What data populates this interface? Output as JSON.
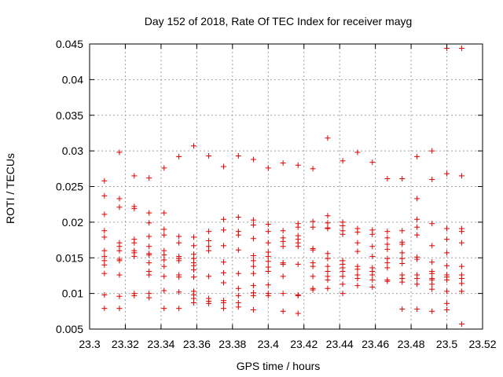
{
  "chart_data": {
    "type": "scatter",
    "title": "Day 152 of 2018, Rate Of TEC Index for receiver mayg",
    "xlabel": "GPS time / hours",
    "ylabel": "ROTI / TECUs",
    "xlim": [
      23.3,
      23.52
    ],
    "ylim": [
      0.005,
      0.045
    ],
    "x_ticks": [
      23.3,
      23.32,
      23.34,
      23.36,
      23.38,
      23.4,
      23.42,
      23.44,
      23.46,
      23.48,
      23.5,
      23.52
    ],
    "x_tick_labels": [
      "23.3",
      "23.32",
      "23.34",
      "23.36",
      "23.38",
      "23.4",
      "23.42",
      "23.44",
      "23.46",
      "23.48",
      "23.5",
      "23.52"
    ],
    "y_ticks": [
      0.005,
      0.01,
      0.015,
      0.02,
      0.025,
      0.03,
      0.035,
      0.04,
      0.045
    ],
    "y_tick_labels": [
      "0.005",
      "0.01",
      "0.015",
      "0.02",
      "0.025",
      "0.03",
      "0.035",
      "0.04",
      "0.045"
    ],
    "grid": true,
    "marker": "+",
    "color": "#e00000",
    "series": [
      {
        "name": "ROTI",
        "points": [
          [
            23.3083,
            0.0258
          ],
          [
            23.3083,
            0.0237
          ],
          [
            23.3083,
            0.0211
          ],
          [
            23.3083,
            0.0188
          ],
          [
            23.3083,
            0.0179
          ],
          [
            23.3083,
            0.016
          ],
          [
            23.3083,
            0.0152
          ],
          [
            23.3083,
            0.0146
          ],
          [
            23.3083,
            0.014
          ],
          [
            23.3083,
            0.0128
          ],
          [
            23.3083,
            0.0098
          ],
          [
            23.3083,
            0.0079
          ],
          [
            23.3167,
            0.0298
          ],
          [
            23.3167,
            0.0233
          ],
          [
            23.3167,
            0.0221
          ],
          [
            23.3167,
            0.0171
          ],
          [
            23.3167,
            0.0166
          ],
          [
            23.3167,
            0.016
          ],
          [
            23.3167,
            0.0148
          ],
          [
            23.3167,
            0.0146
          ],
          [
            23.3167,
            0.0126
          ],
          [
            23.3167,
            0.0096
          ],
          [
            23.3167,
            0.0079
          ],
          [
            23.325,
            0.0265
          ],
          [
            23.325,
            0.0222
          ],
          [
            23.325,
            0.0219
          ],
          [
            23.325,
            0.0176
          ],
          [
            23.325,
            0.0171
          ],
          [
            23.325,
            0.016
          ],
          [
            23.325,
            0.0157
          ],
          [
            23.325,
            0.0152
          ],
          [
            23.325,
            0.01
          ],
          [
            23.325,
            0.0097
          ],
          [
            23.3333,
            0.0262
          ],
          [
            23.3333,
            0.0213
          ],
          [
            23.3333,
            0.0199
          ],
          [
            23.3333,
            0.018
          ],
          [
            23.3333,
            0.0166
          ],
          [
            23.3333,
            0.0156
          ],
          [
            23.3333,
            0.0154
          ],
          [
            23.3333,
            0.0143
          ],
          [
            23.3333,
            0.0131
          ],
          [
            23.3333,
            0.0126
          ],
          [
            23.3333,
            0.01
          ],
          [
            23.3333,
            0.0094
          ],
          [
            23.3417,
            0.0276
          ],
          [
            23.3417,
            0.0213
          ],
          [
            23.3417,
            0.019
          ],
          [
            23.3417,
            0.0182
          ],
          [
            23.3417,
            0.016
          ],
          [
            23.3417,
            0.0154
          ],
          [
            23.3417,
            0.0147
          ],
          [
            23.3417,
            0.0138
          ],
          [
            23.3417,
            0.0124
          ],
          [
            23.3417,
            0.0104
          ],
          [
            23.3417,
            0.0079
          ],
          [
            23.35,
            0.0292
          ],
          [
            23.35,
            0.018
          ],
          [
            23.35,
            0.0171
          ],
          [
            23.35,
            0.0152
          ],
          [
            23.35,
            0.0149
          ],
          [
            23.35,
            0.0146
          ],
          [
            23.35,
            0.0126
          ],
          [
            23.35,
            0.0123
          ],
          [
            23.35,
            0.0102
          ],
          [
            23.35,
            0.0079
          ],
          [
            23.3583,
            0.0307
          ],
          [
            23.3583,
            0.0179
          ],
          [
            23.3583,
            0.0167
          ],
          [
            23.3583,
            0.0155
          ],
          [
            23.3583,
            0.0149
          ],
          [
            23.3583,
            0.0143
          ],
          [
            23.3583,
            0.0139
          ],
          [
            23.3583,
            0.0133
          ],
          [
            23.3583,
            0.0123
          ],
          [
            23.3583,
            0.0103
          ],
          [
            23.3583,
            0.0098
          ],
          [
            23.3583,
            0.0093
          ],
          [
            23.3583,
            0.0087
          ],
          [
            23.3667,
            0.0293
          ],
          [
            23.3667,
            0.0187
          ],
          [
            23.3667,
            0.0174
          ],
          [
            23.3667,
            0.0166
          ],
          [
            23.3667,
            0.016
          ],
          [
            23.3667,
            0.0124
          ],
          [
            23.3667,
            0.0093
          ],
          [
            23.3667,
            0.0089
          ],
          [
            23.3667,
            0.0086
          ],
          [
            23.375,
            0.0278
          ],
          [
            23.375,
            0.0204
          ],
          [
            23.375,
            0.0189
          ],
          [
            23.375,
            0.0167
          ],
          [
            23.375,
            0.0144
          ],
          [
            23.375,
            0.0129
          ],
          [
            23.375,
            0.0115
          ],
          [
            23.375,
            0.009
          ],
          [
            23.375,
            0.0087
          ],
          [
            23.375,
            0.0079
          ],
          [
            23.3833,
            0.0293
          ],
          [
            23.3833,
            0.0207
          ],
          [
            23.3833,
            0.0187
          ],
          [
            23.3833,
            0.0182
          ],
          [
            23.3833,
            0.0161
          ],
          [
            23.3833,
            0.0128
          ],
          [
            23.3833,
            0.0107
          ],
          [
            23.3833,
            0.0097
          ],
          [
            23.3833,
            0.0087
          ],
          [
            23.3833,
            0.0081
          ],
          [
            23.3917,
            0.0288
          ],
          [
            23.3917,
            0.0203
          ],
          [
            23.3917,
            0.0196
          ],
          [
            23.3917,
            0.0177
          ],
          [
            23.3917,
            0.0153
          ],
          [
            23.3917,
            0.0146
          ],
          [
            23.3917,
            0.0138
          ],
          [
            23.3917,
            0.0128
          ],
          [
            23.3917,
            0.0111
          ],
          [
            23.3917,
            0.0101
          ],
          [
            23.3917,
            0.0097
          ],
          [
            23.3917,
            0.0077
          ],
          [
            23.4,
            0.0276
          ],
          [
            23.4,
            0.0197
          ],
          [
            23.4,
            0.0187
          ],
          [
            23.4,
            0.0171
          ],
          [
            23.4,
            0.0158
          ],
          [
            23.4,
            0.0152
          ],
          [
            23.4,
            0.0145
          ],
          [
            23.4,
            0.0137
          ],
          [
            23.4,
            0.0131
          ],
          [
            23.4,
            0.0112
          ],
          [
            23.4,
            0.01
          ],
          [
            23.4,
            0.0097
          ],
          [
            23.4083,
            0.0283
          ],
          [
            23.4083,
            0.0188
          ],
          [
            23.4083,
            0.0178
          ],
          [
            23.4083,
            0.0173
          ],
          [
            23.4083,
            0.0166
          ],
          [
            23.4083,
            0.0143
          ],
          [
            23.4083,
            0.0141
          ],
          [
            23.4083,
            0.0124
          ],
          [
            23.4083,
            0.01
          ],
          [
            23.4083,
            0.0075
          ],
          [
            23.4167,
            0.028
          ],
          [
            23.4167,
            0.0198
          ],
          [
            23.4167,
            0.0193
          ],
          [
            23.4167,
            0.0181
          ],
          [
            23.4167,
            0.0176
          ],
          [
            23.4167,
            0.0171
          ],
          [
            23.4167,
            0.0166
          ],
          [
            23.4167,
            0.0141
          ],
          [
            23.4167,
            0.0098
          ],
          [
            23.4167,
            0.0097
          ],
          [
            23.4167,
            0.0072
          ],
          [
            23.425,
            0.0275
          ],
          [
            23.425,
            0.0201
          ],
          [
            23.425,
            0.0193
          ],
          [
            23.425,
            0.0163
          ],
          [
            23.425,
            0.0161
          ],
          [
            23.425,
            0.0143
          ],
          [
            23.425,
            0.0138
          ],
          [
            23.425,
            0.0124
          ],
          [
            23.425,
            0.0107
          ],
          [
            23.425,
            0.0105
          ],
          [
            23.4333,
            0.0318
          ],
          [
            23.4333,
            0.0209
          ],
          [
            23.4333,
            0.0199
          ],
          [
            23.4333,
            0.0192
          ],
          [
            23.4333,
            0.0191
          ],
          [
            23.4333,
            0.0156
          ],
          [
            23.4333,
            0.0149
          ],
          [
            23.4333,
            0.0138
          ],
          [
            23.4333,
            0.0131
          ],
          [
            23.4333,
            0.0124
          ],
          [
            23.4333,
            0.0119
          ],
          [
            23.4333,
            0.0107
          ],
          [
            23.4417,
            0.0286
          ],
          [
            23.4417,
            0.02
          ],
          [
            23.4417,
            0.0195
          ],
          [
            23.4417,
            0.0188
          ],
          [
            23.4417,
            0.0183
          ],
          [
            23.4417,
            0.0146
          ],
          [
            23.4417,
            0.0141
          ],
          [
            23.4417,
            0.0136
          ],
          [
            23.4417,
            0.0131
          ],
          [
            23.4417,
            0.0124
          ],
          [
            23.4417,
            0.0113
          ],
          [
            23.4417,
            0.01
          ],
          [
            23.45,
            0.0298
          ],
          [
            23.45,
            0.0191
          ],
          [
            23.45,
            0.0186
          ],
          [
            23.45,
            0.0171
          ],
          [
            23.45,
            0.0159
          ],
          [
            23.45,
            0.0138
          ],
          [
            23.45,
            0.0134
          ],
          [
            23.45,
            0.0126
          ],
          [
            23.45,
            0.0121
          ],
          [
            23.45,
            0.0111
          ],
          [
            23.4583,
            0.0284
          ],
          [
            23.4583,
            0.0189
          ],
          [
            23.4583,
            0.0183
          ],
          [
            23.4583,
            0.0166
          ],
          [
            23.4583,
            0.0152
          ],
          [
            23.4583,
            0.0136
          ],
          [
            23.4583,
            0.0131
          ],
          [
            23.4583,
            0.0126
          ],
          [
            23.4583,
            0.0119
          ],
          [
            23.4583,
            0.0109
          ],
          [
            23.4667,
            0.0261
          ],
          [
            23.4667,
            0.0187
          ],
          [
            23.4667,
            0.0178
          ],
          [
            23.4667,
            0.0169
          ],
          [
            23.4667,
            0.0162
          ],
          [
            23.4667,
            0.0149
          ],
          [
            23.4667,
            0.0143
          ],
          [
            23.4667,
            0.0136
          ],
          [
            23.4667,
            0.0119
          ],
          [
            23.4667,
            0.0117
          ],
          [
            23.475,
            0.0261
          ],
          [
            23.475,
            0.0188
          ],
          [
            23.475,
            0.0172
          ],
          [
            23.475,
            0.0169
          ],
          [
            23.475,
            0.0157
          ],
          [
            23.475,
            0.0149
          ],
          [
            23.475,
            0.0142
          ],
          [
            23.475,
            0.0126
          ],
          [
            23.475,
            0.0121
          ],
          [
            23.475,
            0.0116
          ],
          [
            23.475,
            0.0078
          ],
          [
            23.4833,
            0.0292
          ],
          [
            23.4833,
            0.0233
          ],
          [
            23.4833,
            0.0204
          ],
          [
            23.4833,
            0.0193
          ],
          [
            23.4833,
            0.0182
          ],
          [
            23.4833,
            0.0151
          ],
          [
            23.4833,
            0.0148
          ],
          [
            23.4833,
            0.0126
          ],
          [
            23.4833,
            0.0121
          ],
          [
            23.4833,
            0.0113
          ],
          [
            23.4833,
            0.0078
          ],
          [
            23.4917,
            0.03
          ],
          [
            23.4917,
            0.026
          ],
          [
            23.4917,
            0.0198
          ],
          [
            23.4917,
            0.0167
          ],
          [
            23.4917,
            0.0144
          ],
          [
            23.4917,
            0.0131
          ],
          [
            23.4917,
            0.0128
          ],
          [
            23.4917,
            0.0121
          ],
          [
            23.4917,
            0.0119
          ],
          [
            23.4917,
            0.0113
          ],
          [
            23.4917,
            0.0106
          ],
          [
            23.4917,
            0.0075
          ],
          [
            23.5,
            0.0444
          ],
          [
            23.5,
            0.0268
          ],
          [
            23.5,
            0.0191
          ],
          [
            23.5,
            0.0176
          ],
          [
            23.5,
            0.0157
          ],
          [
            23.5,
            0.0139
          ],
          [
            23.5,
            0.0126
          ],
          [
            23.5,
            0.0123
          ],
          [
            23.5,
            0.0119
          ],
          [
            23.5,
            0.0103
          ],
          [
            23.5,
            0.0086
          ],
          [
            23.5,
            0.0077
          ],
          [
            23.5083,
            0.0444
          ],
          [
            23.5083,
            0.0265
          ],
          [
            23.5083,
            0.0191
          ],
          [
            23.5083,
            0.0187
          ],
          [
            23.5083,
            0.0171
          ],
          [
            23.5083,
            0.0138
          ],
          [
            23.5083,
            0.0126
          ],
          [
            23.5083,
            0.0121
          ],
          [
            23.5083,
            0.0114
          ],
          [
            23.5083,
            0.0103
          ],
          [
            23.5083,
            0.0057
          ]
        ]
      }
    ]
  }
}
